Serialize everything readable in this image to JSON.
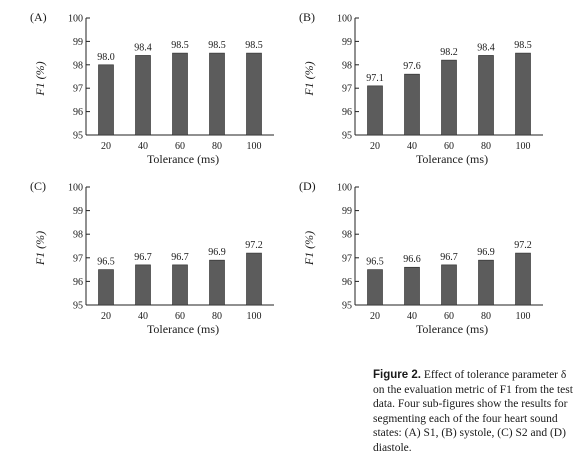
{
  "chart_data": [
    {
      "type": "bar",
      "panel": "(A)",
      "categories": [
        "20",
        "40",
        "60",
        "80",
        "100"
      ],
      "values": [
        98.0,
        98.4,
        98.5,
        98.5,
        98.5
      ],
      "data_labels": [
        "98.0",
        "98.4",
        "98.5",
        "98.5",
        "98.5"
      ],
      "xlabel": "Tolerance (ms)",
      "ylabel": "F1 (%)",
      "ylim": [
        95,
        100
      ],
      "yticks": [
        "95",
        "96",
        "97",
        "98",
        "99",
        "100"
      ],
      "color": "#5c5c5c",
      "grid": false
    },
    {
      "type": "bar",
      "panel": "(B)",
      "categories": [
        "20",
        "40",
        "60",
        "80",
        "100"
      ],
      "values": [
        97.1,
        97.6,
        98.2,
        98.4,
        98.5
      ],
      "data_labels": [
        "97.1",
        "97.6",
        "98.2",
        "98.4",
        "98.5"
      ],
      "xlabel": "Tolerance (ms)",
      "ylabel": "F1 (%)",
      "ylim": [
        95,
        100
      ],
      "yticks": [
        "95",
        "96",
        "97",
        "98",
        "99",
        "100"
      ],
      "color": "#5c5c5c",
      "grid": false
    },
    {
      "type": "bar",
      "panel": "(C)",
      "categories": [
        "20",
        "40",
        "60",
        "80",
        "100"
      ],
      "values": [
        96.5,
        96.7,
        96.7,
        96.9,
        97.2
      ],
      "data_labels": [
        "96.5",
        "96.7",
        "96.7",
        "96.9",
        "97.2"
      ],
      "xlabel": "Tolerance (ms)",
      "ylabel": "F1 (%)",
      "ylim": [
        95,
        100
      ],
      "yticks": [
        "95",
        "96",
        "97",
        "98",
        "99",
        "100"
      ],
      "color": "#5c5c5c",
      "grid": false
    },
    {
      "type": "bar",
      "panel": "(D)",
      "categories": [
        "20",
        "40",
        "60",
        "80",
        "100"
      ],
      "values": [
        96.5,
        96.6,
        96.7,
        96.9,
        97.2
      ],
      "data_labels": [
        "96.5",
        "96.6",
        "96.7",
        "96.9",
        "97.2"
      ],
      "xlabel": "Tolerance (ms)",
      "ylabel": "F1 (%)",
      "ylim": [
        95,
        100
      ],
      "yticks": [
        "95",
        "96",
        "97",
        "98",
        "99",
        "100"
      ],
      "color": "#5c5c5c",
      "grid": false
    }
  ],
  "caption": {
    "label": "Figure 2.",
    "text": " Effect of tolerance parameter δ on the evaluation metric of F1 from the test data. Four sub-figures show the results for segmenting each of the four heart sound states: (A) S1, (B) systole, (C) S2 and (D) diastole."
  }
}
